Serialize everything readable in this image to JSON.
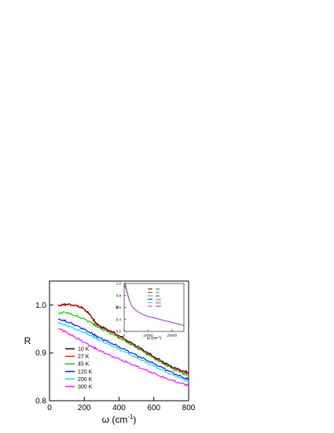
{
  "chart_data": [
    {
      "type": "line",
      "title": "",
      "xlabel": "ω (cm",
      "xlabel_sup": "-1",
      "xlabel_close": ")",
      "ylabel": "R",
      "xlim": [
        0,
        800
      ],
      "ylim": [
        0.8,
        1.05
      ],
      "x_ticks": [
        0,
        200,
        400,
        600,
        800
      ],
      "x_tick_labels": [
        "0",
        "200",
        "400",
        "600",
        "800"
      ],
      "y_ticks": [
        0.8,
        0.9,
        1.0
      ],
      "y_tick_labels": [
        "0.8",
        "0.9",
        "1.0"
      ],
      "grid": false,
      "legend": "lower-left",
      "x": [
        50,
        80,
        100,
        130,
        160,
        190,
        220,
        250,
        260,
        280,
        310,
        340,
        380,
        420,
        460,
        500,
        540,
        580,
        620,
        660,
        700,
        740,
        780,
        800
      ],
      "series": [
        {
          "name": "10 K",
          "color": "#000000",
          "values": [
            0.999,
            1.0,
            1.001,
            1.0,
            0.998,
            0.994,
            0.985,
            0.972,
            0.966,
            0.958,
            0.953,
            0.948,
            0.94,
            0.932,
            0.923,
            0.915,
            0.906,
            0.897,
            0.888,
            0.88,
            0.872,
            0.866,
            0.861,
            0.858
          ]
        },
        {
          "name": "27 K",
          "color": "#ff0000",
          "values": [
            0.999,
            1.001,
            1.002,
            1.0,
            0.998,
            0.993,
            0.984,
            0.97,
            0.964,
            0.956,
            0.951,
            0.946,
            0.938,
            0.93,
            0.921,
            0.912,
            0.904,
            0.895,
            0.886,
            0.878,
            0.87,
            0.864,
            0.858,
            0.856
          ]
        },
        {
          "name": "45 K",
          "color": "#00cc00",
          "values": [
            0.982,
            0.985,
            0.984,
            0.98,
            0.976,
            0.972,
            0.967,
            0.961,
            0.958,
            0.953,
            0.948,
            0.943,
            0.935,
            0.927,
            0.919,
            0.911,
            0.902,
            0.893,
            0.884,
            0.876,
            0.868,
            0.861,
            0.855,
            0.852
          ]
        },
        {
          "name": "120 K",
          "color": "#0000ff",
          "values": [
            0.97,
            0.968,
            0.965,
            0.961,
            0.956,
            0.951,
            0.945,
            0.939,
            0.937,
            0.933,
            0.928,
            0.923,
            0.916,
            0.909,
            0.902,
            0.895,
            0.888,
            0.881,
            0.874,
            0.867,
            0.86,
            0.853,
            0.847,
            0.845
          ]
        },
        {
          "name": "200 K",
          "color": "#00dddd",
          "values": [
            0.962,
            0.96,
            0.957,
            0.953,
            0.948,
            0.944,
            0.939,
            0.934,
            0.932,
            0.928,
            0.923,
            0.918,
            0.911,
            0.904,
            0.897,
            0.89,
            0.883,
            0.876,
            0.869,
            0.862,
            0.855,
            0.849,
            0.843,
            0.84
          ]
        },
        {
          "name": "300 K",
          "color": "#ff00ff",
          "values": [
            0.95,
            0.947,
            0.942,
            0.936,
            0.93,
            0.924,
            0.918,
            0.912,
            0.91,
            0.906,
            0.901,
            0.896,
            0.89,
            0.884,
            0.878,
            0.872,
            0.866,
            0.86,
            0.854,
            0.848,
            0.843,
            0.838,
            0.834,
            0.832
          ]
        }
      ]
    },
    {
      "type": "line",
      "title": "",
      "xlabel": "ω (cm",
      "xlabel_sup": "-1",
      "xlabel_close": ")",
      "ylabel": "R",
      "xlim": [
        0,
        25000
      ],
      "ylim": [
        0.2,
        1.0
      ],
      "x_ticks": [
        0,
        10000,
        20000
      ],
      "x_tick_labels": [
        "0",
        "10000",
        "20000"
      ],
      "y_ticks": [
        0.2,
        0.4,
        0.6,
        0.8,
        1.0
      ],
      "y_tick_labels": [
        "0.2",
        "0.4",
        "0.6",
        "0.8",
        "1.0"
      ],
      "grid": false,
      "legend": "top-center",
      "x": [
        50,
        300,
        600,
        1000,
        1500,
        2000,
        3000,
        4000,
        5000,
        6000,
        8000,
        10000,
        12000,
        14000,
        16000,
        18000,
        20000,
        22000,
        24000,
        25000
      ],
      "series": [
        {
          "name": "10K",
          "color": "#000000",
          "values": [
            1.0,
            0.99,
            0.96,
            0.9,
            0.82,
            0.74,
            0.64,
            0.58,
            0.55,
            0.52,
            0.48,
            0.45,
            0.43,
            0.41,
            0.39,
            0.37,
            0.35,
            0.33,
            0.31,
            0.3
          ]
        },
        {
          "name": "27K",
          "color": "#ff0000",
          "values": [
            1.0,
            0.99,
            0.96,
            0.9,
            0.82,
            0.74,
            0.64,
            0.58,
            0.55,
            0.52,
            0.48,
            0.45,
            0.43,
            0.41,
            0.39,
            0.37,
            0.35,
            0.33,
            0.31,
            0.3
          ]
        },
        {
          "name": "45K",
          "color": "#00cc00",
          "values": [
            0.98,
            0.97,
            0.95,
            0.89,
            0.81,
            0.74,
            0.64,
            0.58,
            0.55,
            0.52,
            0.48,
            0.45,
            0.43,
            0.41,
            0.39,
            0.37,
            0.35,
            0.33,
            0.31,
            0.3
          ]
        },
        {
          "name": "120K",
          "color": "#0000ff",
          "values": [
            0.97,
            0.96,
            0.94,
            0.88,
            0.81,
            0.73,
            0.64,
            0.58,
            0.55,
            0.52,
            0.48,
            0.45,
            0.43,
            0.41,
            0.39,
            0.37,
            0.35,
            0.33,
            0.31,
            0.3
          ]
        },
        {
          "name": "200K",
          "color": "#00dddd",
          "values": [
            0.96,
            0.95,
            0.93,
            0.88,
            0.8,
            0.73,
            0.64,
            0.58,
            0.55,
            0.52,
            0.48,
            0.45,
            0.43,
            0.41,
            0.39,
            0.37,
            0.35,
            0.33,
            0.31,
            0.3
          ]
        },
        {
          "name": "300K",
          "color": "#ff00ff",
          "values": [
            0.95,
            0.94,
            0.92,
            0.87,
            0.8,
            0.73,
            0.64,
            0.58,
            0.55,
            0.52,
            0.48,
            0.45,
            0.43,
            0.41,
            0.39,
            0.37,
            0.35,
            0.33,
            0.31,
            0.3
          ]
        }
      ]
    }
  ]
}
